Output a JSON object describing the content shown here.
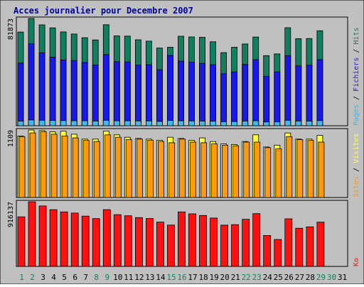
{
  "chart_data": {
    "type": "bar",
    "title": "Acces journalier pour Decembre 2007",
    "categories": [
      "1",
      "2",
      "3",
      "4",
      "5",
      "6",
      "7",
      "8",
      "9",
      "10",
      "11",
      "12",
      "13",
      "14",
      "15",
      "16",
      "17",
      "18",
      "19",
      "20",
      "21",
      "22",
      "23",
      "24",
      "25",
      "26",
      "27",
      "28",
      "29",
      "30",
      "31"
    ],
    "weekend_days": [
      1,
      2,
      8,
      9,
      15,
      16,
      22,
      23,
      29,
      30
    ],
    "panels": [
      {
        "key": "top",
        "max_label": "81873",
        "ymax": 81873,
        "legend": [
          "Pages",
          "Fichiers",
          "Hits"
        ],
        "series": [
          {
            "name": "Hits",
            "color": "#0f7f5f",
            "values": [
              71500,
              81873,
              77000,
              74700,
              71600,
              70000,
              67200,
              65500,
              77100,
              68600,
              68400,
              65600,
              64600,
              59300,
              59900,
              68300,
              67800,
              67500,
              64100,
              55800,
              59900,
              62400,
              67700,
              53500,
              54800,
              74800,
              66500,
              66600,
              72500,
              0,
              0
            ]
          },
          {
            "name": "Fichiers",
            "color": "#1818e8",
            "values": [
              47800,
              62500,
              55700,
              52400,
              50200,
              49800,
              48300,
              46400,
              54400,
              48900,
              48700,
              46400,
              46600,
              42800,
              53600,
              49300,
              48600,
              47600,
              46600,
              39700,
              41100,
              46800,
              50400,
              37700,
              41100,
              53500,
              45700,
              46300,
              50500,
              0,
              0
            ]
          },
          {
            "name": "Pages",
            "color": "#40b8f0",
            "values": [
              3600,
              4400,
              4200,
              4000,
              3900,
              3800,
              3800,
              3600,
              4200,
              3800,
              3800,
              3700,
              3700,
              3300,
              4000,
              3800,
              3700,
              3600,
              3500,
              3100,
              3200,
              3500,
              3800,
              2900,
              3000,
              4200,
              3600,
              3600,
              3900,
              0,
              0
            ]
          }
        ]
      },
      {
        "key": "middle",
        "max_label": "1109",
        "ymax": 1109,
        "legend": [
          "Sites",
          "Visites"
        ],
        "series": [
          {
            "name": "Visites",
            "color": "#ffff40",
            "values": [
              1010,
              1109,
              1100,
              1080,
              1090,
              1040,
              960,
              960,
              1090,
              1030,
              990,
              970,
              960,
              940,
              990,
              970,
              940,
              980,
              920,
              880,
              870,
              920,
              1030,
              830,
              860,
              1060,
              960,
              960,
              1020,
              0,
              0
            ]
          },
          {
            "name": "Sites",
            "color": "#ff9a10",
            "values": [
              1000,
              1060,
              1080,
              1040,
              1010,
              980,
              940,
              920,
              1030,
              990,
              950,
              960,
              940,
              920,
              900,
              960,
              910,
              900,
              880,
              860,
              850,
              910,
              910,
              820,
              800,
              1000,
              950,
              940,
              910,
              0,
              0
            ]
          }
        ]
      },
      {
        "key": "bottom",
        "max_label": "916137",
        "ymax": 916137,
        "legend": [
          "Ko"
        ],
        "series": [
          {
            "name": "Ko",
            "color": "#ff1010",
            "values": [
              703000,
              916137,
              857000,
              804000,
              772000,
              756000,
              713000,
              678000,
              804000,
              733000,
              718000,
              692000,
              679000,
              628000,
              586000,
              772000,
              745000,
              722000,
              686000,
              585000,
              592000,
              667000,
              748000,
              439000,
              382000,
              675000,
              541000,
              561000,
              627000,
              0,
              0
            ]
          }
        ]
      }
    ]
  },
  "colors": {
    "title": "#0000a0",
    "plot_bg": "#c0c0c0",
    "weekday_label": "#000000",
    "weekend_label": "#0f7f5f"
  }
}
